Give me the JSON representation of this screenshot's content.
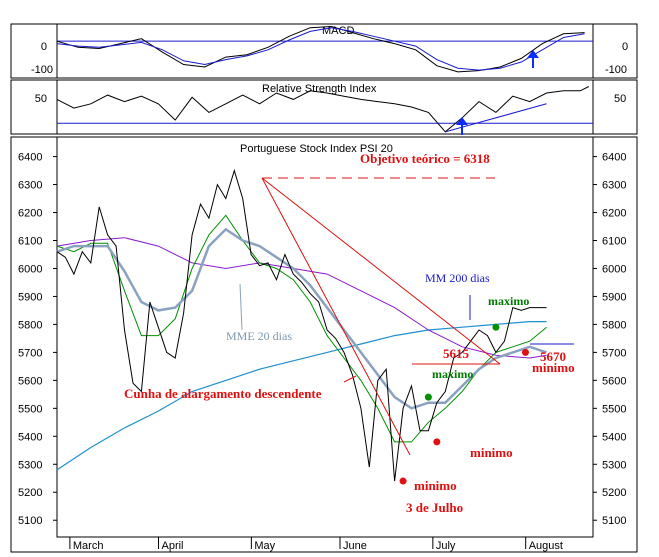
{
  "colors": {
    "price": "#000000",
    "mme20": "#8aa2bf",
    "green": "#009000",
    "purple": "#8a1ad0",
    "mm200": "#1e8fd0",
    "trend": "#e01010",
    "blue": "#1a1ad0",
    "arrow": "#0a2cff"
  },
  "chart_data": [
    {
      "type": "line",
      "panel": "macd",
      "title": "MACD",
      "ylim": [
        -150,
        70
      ],
      "yticks": [
        0,
        -100
      ],
      "ytick_labels": [
        "0",
        "-100"
      ],
      "zero_line": 0,
      "series": [
        {
          "name": "",
          "color": "#000000",
          "x": [
            0,
            5,
            10,
            15,
            20,
            25,
            30,
            35,
            40,
            45,
            50,
            55,
            60,
            65,
            70,
            75,
            80,
            85,
            90,
            95,
            100,
            105,
            110,
            115,
            120,
            125
          ],
          "values": [
            0,
            -25,
            -30,
            -10,
            10,
            -45,
            -95,
            -105,
            -65,
            -55,
            -25,
            20,
            55,
            60,
            35,
            10,
            -10,
            -35,
            -100,
            -125,
            -120,
            -105,
            -70,
            -10,
            30,
            35
          ]
        },
        {
          "name": "",
          "color": "#1a1ad0",
          "x": [
            0,
            5,
            10,
            15,
            20,
            25,
            30,
            35,
            40,
            45,
            50,
            55,
            60,
            65,
            70,
            75,
            80,
            85,
            90,
            95,
            100,
            105,
            110,
            115,
            120,
            125
          ],
          "values": [
            -10,
            -20,
            -25,
            -15,
            -5,
            -35,
            -80,
            -95,
            -75,
            -60,
            -35,
            5,
            40,
            55,
            40,
            20,
            0,
            -20,
            -75,
            -110,
            -118,
            -110,
            -85,
            -35,
            15,
            30
          ]
        }
      ]
    },
    {
      "type": "line",
      "panel": "rsi",
      "title": "Relative Strength Index",
      "ylim": [
        20,
        70
      ],
      "yticks": [
        50
      ],
      "ytick_labels": [
        "50"
      ],
      "reference_line": 30,
      "series": [
        {
          "name": "",
          "color": "#000000",
          "x": [
            0,
            4,
            8,
            12,
            16,
            20,
            24,
            28,
            32,
            36,
            40,
            44,
            48,
            52,
            56,
            60,
            64,
            68,
            72,
            76,
            80,
            84,
            88,
            92,
            96,
            100,
            104,
            108,
            112,
            116,
            120,
            124,
            126
          ],
          "values": [
            52,
            44,
            48,
            56,
            50,
            55,
            48,
            33,
            54,
            40,
            48,
            56,
            48,
            58,
            52,
            60,
            58,
            55,
            52,
            50,
            48,
            45,
            40,
            22,
            35,
            50,
            40,
            55,
            50,
            58,
            60,
            60,
            64
          ]
        }
      ]
    },
    {
      "type": "line",
      "panel": "price",
      "title": "Portuguese Stock Index PSI 20",
      "ylim": [
        5040,
        6470
      ],
      "yticks": [
        5100,
        5200,
        5300,
        5400,
        5500,
        5600,
        5700,
        5800,
        5900,
        6000,
        6100,
        6200,
        6300,
        6400
      ],
      "ytick_labels": [
        "5100",
        "5200",
        "5300",
        "5400",
        "5500",
        "5600",
        "5700",
        "5800",
        "5900",
        "6000",
        "6100",
        "6200",
        "6300",
        "6400"
      ],
      "xlim": [
        0,
        127
      ],
      "month_ticks": [
        {
          "x": 4,
          "label": "March"
        },
        {
          "x": 25,
          "label": "April"
        },
        {
          "x": 47,
          "label": "May"
        },
        {
          "x": 68,
          "label": "June"
        },
        {
          "x": 90,
          "label": "July"
        },
        {
          "x": 112,
          "label": "August"
        }
      ],
      "series": [
        {
          "name": "",
          "color": "#000000",
          "x": [
            0,
            2,
            4,
            6,
            8,
            10,
            12,
            14,
            16,
            18,
            20,
            22,
            24,
            26,
            28,
            30,
            32,
            34,
            36,
            38,
            40,
            42,
            44,
            46,
            48,
            50,
            52,
            54,
            56,
            58,
            60,
            62,
            64,
            66,
            68,
            70,
            72,
            74,
            76,
            78,
            80,
            82,
            84,
            86,
            88,
            90,
            92,
            94,
            96,
            98,
            100,
            102,
            104,
            106,
            108,
            110,
            112,
            114,
            116
          ],
          "values": [
            6060,
            6040,
            5980,
            6060,
            6020,
            6220,
            6120,
            6080,
            5780,
            5590,
            5560,
            5880,
            5790,
            5700,
            5680,
            5840,
            6120,
            6230,
            6180,
            6300,
            6250,
            6350,
            6250,
            6050,
            6010,
            6020,
            5960,
            6050,
            5980,
            5950,
            5910,
            5880,
            5780,
            5750,
            5700,
            5620,
            5500,
            5290,
            5600,
            5640,
            5240,
            5500,
            5580,
            5420,
            5420,
            5520,
            5560,
            5680,
            5700,
            5740,
            5780,
            5760,
            5700,
            5740,
            5860,
            5850,
            5860,
            5860,
            5860
          ]
        },
        {
          "name": "",
          "color": "#8aa2bf",
          "x": [
            0,
            4,
            8,
            12,
            16,
            20,
            24,
            28,
            32,
            36,
            40,
            44,
            48,
            52,
            56,
            60,
            64,
            68,
            72,
            76,
            80,
            84,
            88,
            92,
            96,
            100,
            104,
            108,
            112,
            116
          ],
          "values": [
            6060,
            6080,
            6080,
            6080,
            5990,
            5880,
            5850,
            5860,
            5920,
            6080,
            6140,
            6100,
            6080,
            6040,
            6000,
            5940,
            5860,
            5780,
            5700,
            5620,
            5540,
            5500,
            5520,
            5520,
            5580,
            5640,
            5680,
            5700,
            5720,
            5700
          ]
        },
        {
          "name": "",
          "color": "#009000",
          "x": [
            0,
            4,
            8,
            12,
            16,
            20,
            24,
            28,
            32,
            36,
            40,
            44,
            48,
            52,
            56,
            60,
            64,
            68,
            72,
            76,
            80,
            84,
            88,
            92,
            96,
            100,
            104,
            108,
            112,
            116
          ],
          "values": [
            6080,
            6060,
            6090,
            6090,
            5920,
            5760,
            5760,
            5820,
            6000,
            6120,
            6190,
            6100,
            6020,
            6000,
            5960,
            5880,
            5760,
            5680,
            5600,
            5500,
            5380,
            5380,
            5450,
            5500,
            5560,
            5640,
            5700,
            5720,
            5740,
            5790
          ]
        },
        {
          "name": "",
          "color": "#8a1ad0",
          "x": [
            0,
            8,
            16,
            24,
            32,
            40,
            48,
            56,
            64,
            72,
            80,
            88,
            96,
            104,
            112,
            116
          ],
          "values": [
            6080,
            6100,
            6110,
            6080,
            6020,
            6000,
            6020,
            6000,
            5980,
            5920,
            5860,
            5780,
            5720,
            5690,
            5680,
            5690
          ]
        },
        {
          "name": "",
          "color": "#1e8fd0",
          "x": [
            0,
            8,
            16,
            24,
            32,
            40,
            48,
            56,
            64,
            72,
            80,
            88,
            96,
            104,
            112,
            116
          ],
          "values": [
            5280,
            5360,
            5430,
            5490,
            5560,
            5600,
            5640,
            5670,
            5700,
            5730,
            5760,
            5780,
            5790,
            5800,
            5810,
            5810
          ]
        }
      ]
    }
  ],
  "annotations": {
    "objective": "Objetivo teórico = 6318",
    "mm200": "MM 200 dias",
    "mme20": "MME  20 dias",
    "wedge": "Cunha de alargamento descendente",
    "maximo_right": "maximo",
    "maximo_left": "maximo",
    "level_5615": "5615",
    "level_5670": "5670",
    "minimo_right": "minimo",
    "minimo_mid": "minimo",
    "minimo_left": "minimo",
    "date_low": "3 de Julho"
  },
  "points": {
    "max_right": {
      "x": 104,
      "y": 5790
    },
    "max_left": {
      "x": 88,
      "y": 5540
    },
    "min_mid": {
      "x": 90,
      "y": 5380
    },
    "min_left": {
      "x": 82,
      "y": 5240
    },
    "min_right": {
      "x": 111,
      "y": 5700
    }
  }
}
